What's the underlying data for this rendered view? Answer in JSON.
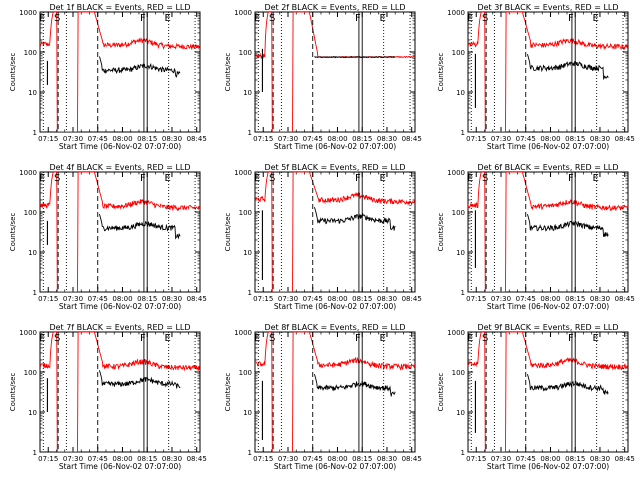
{
  "chart_data": {
    "type": "line",
    "layout": "3x3 grid",
    "ylabel": "Counts/sec",
    "xlabel": "Start Time (06-Nov-02 07:07:00)",
    "yscale": "log",
    "ylim": [
      1,
      1000
    ],
    "y_ticks": [
      "1",
      "10",
      "100",
      "1000"
    ],
    "xlim_minutes_after_0700": [
      10,
      107
    ],
    "x_ticks": [
      "07:15",
      "07:30",
      "07:45",
      "08:00",
      "08:15",
      "08:30",
      "08:45"
    ],
    "x_tick_minutes_after_0700": [
      15,
      30,
      45,
      60,
      75,
      90,
      105
    ],
    "series_colors": {
      "events": "#000000",
      "lld": "#ff0000"
    },
    "markers": [
      {
        "label": "E",
        "minute": 12,
        "style": "dotted"
      },
      {
        "label": "S",
        "minute": 21,
        "style": "dashed"
      },
      {
        "label": "",
        "minute": 26,
        "style": "dotted"
      },
      {
        "label": "",
        "minute": 45,
        "style": "dashed"
      },
      {
        "label": "F",
        "minute": 73,
        "style": "solid"
      },
      {
        "label": "",
        "minute": 75,
        "style": "solid"
      },
      {
        "label": "E",
        "minute": 88,
        "style": "dotted"
      },
      {
        "label": "",
        "minute": 104,
        "style": "dotted"
      }
    ],
    "panels": [
      {
        "title": "Det 1f BLACK = Events, RED = LLD",
        "red_level": 150,
        "red_peak": 1000,
        "black_level": 35,
        "black_spike": [
          60,
          15
        ],
        "black_end": 28
      },
      {
        "title": "Det 2f BLACK = Events, RED = LLD",
        "red_level": 75,
        "red_peak": 1000,
        "black_level": 75,
        "black_spike": [
          120,
          10
        ],
        "black_end": 75
      },
      {
        "title": "Det 3f BLACK = Events, RED = LLD",
        "red_level": 150,
        "red_peak": 1000,
        "black_level": 40,
        "black_spike": [
          90,
          4
        ],
        "black_end": 25
      },
      {
        "title": "Det 4f BLACK = Events, RED = LLD",
        "red_level": 140,
        "red_peak": 1000,
        "black_level": 40,
        "black_spike": [
          60,
          15
        ],
        "black_end": 25
      },
      {
        "title": "Det 5f BLACK = Events, RED = LLD",
        "red_level": 200,
        "red_peak": 1000,
        "black_level": 60,
        "black_spike": [
          110,
          2
        ],
        "black_end": 40
      },
      {
        "title": "Det 6f BLACK = Events, RED = LLD",
        "red_level": 140,
        "red_peak": 1000,
        "black_level": 40,
        "black_spike": [
          110,
          4
        ],
        "black_end": 28
      },
      {
        "title": "Det 7f BLACK = Events, RED = LLD",
        "red_level": 140,
        "red_peak": 1000,
        "black_level": 50,
        "black_spike": [
          70,
          10
        ],
        "black_end": 45
      },
      {
        "title": "Det 8f BLACK = Events, RED = LLD",
        "red_level": 150,
        "red_peak": 1000,
        "black_level": 40,
        "black_spike": [
          60,
          2
        ],
        "black_end": 28
      },
      {
        "title": "Det 9f BLACK = Events, RED = LLD",
        "red_level": 150,
        "red_peak": 1000,
        "black_level": 40,
        "black_spike": [
          60,
          3
        ],
        "black_end": 30
      }
    ]
  }
}
